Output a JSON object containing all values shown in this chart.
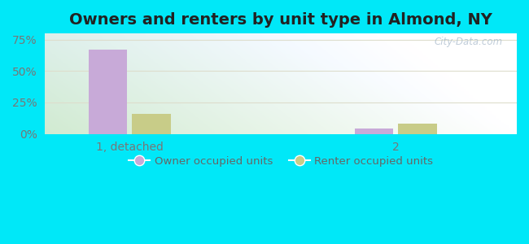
{
  "title": "Owners and renters by unit type in Almond, NY",
  "categories": [
    "1, detached",
    "2"
  ],
  "owner_values": [
    67.0,
    4.0
  ],
  "renter_values": [
    16.0,
    8.0
  ],
  "owner_color": "#c8aad8",
  "renter_color": "#c8cc88",
  "bar_width": 0.32,
  "ylim": [
    0,
    80
  ],
  "yticks": [
    0,
    25,
    50,
    75
  ],
  "ytick_labels": [
    "0%",
    "25%",
    "50%",
    "75%"
  ],
  "legend_owner": "Owner occupied units",
  "legend_renter": "Renter occupied units",
  "outer_bg": "#00e8f8",
  "watermark": "City-Data.com",
  "title_fontsize": 14,
  "tick_fontsize": 10,
  "x_positions": [
    1.0,
    3.2
  ],
  "xlim": [
    0.3,
    4.2
  ]
}
